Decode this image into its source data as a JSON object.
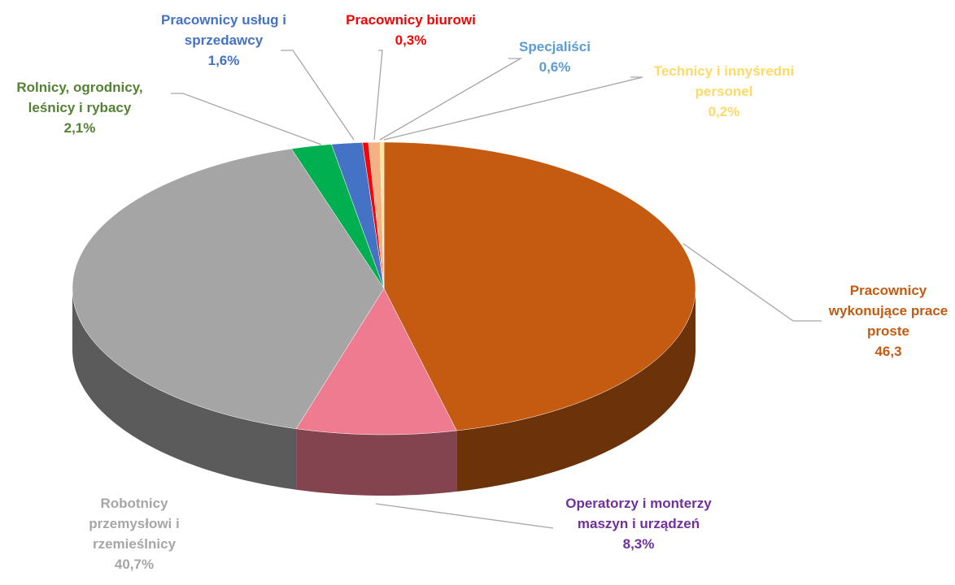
{
  "chart_data": {
    "type": "pie3d",
    "categories": [
      "Pracownicy wykonujące prace proste",
      "Operatorzy i monterzy maszyn i urządzeń",
      "Robotnicy przemysłowi i rzemieślnicy",
      "Rolnicy, ogrodnicy, leśnicy i rybacy",
      "Pracownicy usług i sprzedawcy",
      "Pracownicy biurowi",
      "Specjaliści",
      "Technicy i innyśredni personel"
    ],
    "values": [
      46.3,
      8.3,
      40.7,
      2.1,
      1.6,
      0.3,
      0.6,
      0.2
    ],
    "value_labels": [
      "46,3",
      "8,3%",
      "40,7%",
      "2,1%",
      "1,6%",
      "0,3%",
      "0,6%",
      "0,2%"
    ],
    "colors": [
      "#c55a11",
      "#ee7b8f",
      "#a5a5a5",
      "#00b050",
      "#4472c4",
      "#ff0000",
      "#f4b183",
      "#ffe699"
    ],
    "label_colors": [
      "#c55a11",
      "#7030a0",
      "#a6a6a6",
      "#548235",
      "#4472c4",
      "#ff0000",
      "#5b9bd5",
      "#ffd966"
    ]
  }
}
